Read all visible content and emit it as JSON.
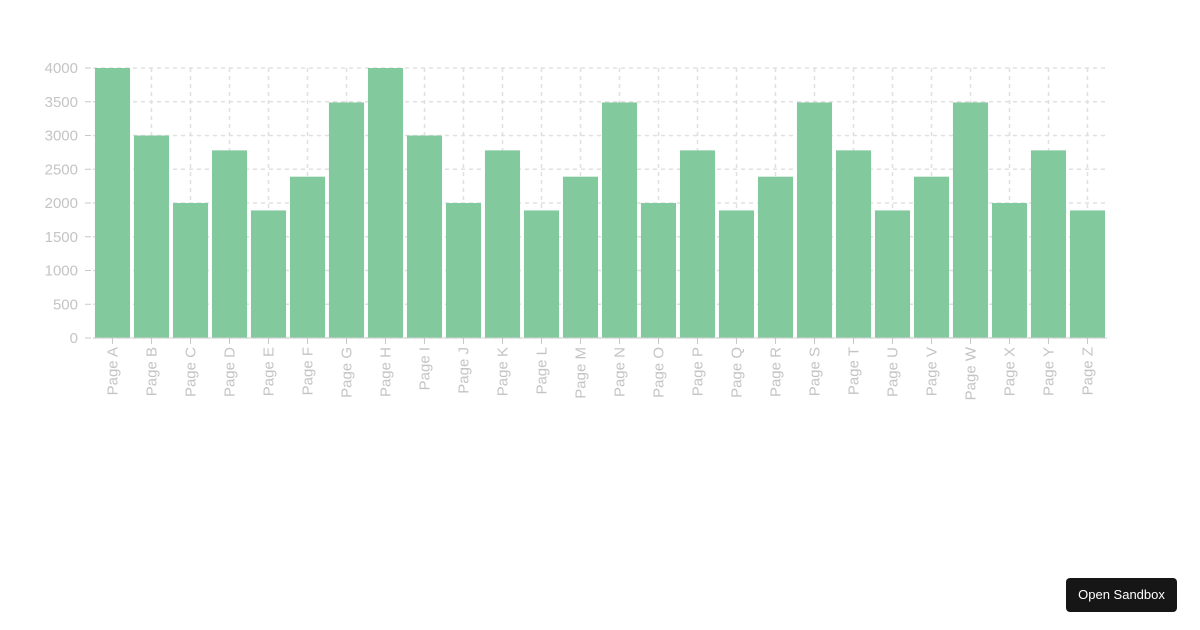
{
  "chart_data": {
    "type": "bar",
    "categories": [
      "Page A",
      "Page B",
      "Page C",
      "Page D",
      "Page E",
      "Page F",
      "Page G",
      "Page H",
      "Page I",
      "Page J",
      "Page K",
      "Page L",
      "Page M",
      "Page N",
      "Page O",
      "Page P",
      "Page Q",
      "Page R",
      "Page S",
      "Page T",
      "Page U",
      "Page V",
      "Page W",
      "Page X",
      "Page Y",
      "Page Z"
    ],
    "series": [
      {
        "values": [
          4000,
          3000,
          2000,
          2780,
          1890,
          2390,
          3490,
          4000,
          3000,
          2000,
          2780,
          1890,
          2390,
          3490,
          2000,
          2780,
          1890,
          2390,
          3490,
          2780,
          1890,
          2390,
          3490,
          2000,
          2780,
          1890
        ]
      }
    ],
    "ylim": [
      0,
      4000
    ],
    "yticks": [
      0,
      500,
      1000,
      1500,
      2000,
      2500,
      3000,
      3500,
      4000
    ],
    "grid": true,
    "bar_color": "#82ca9d",
    "title": "",
    "xlabel": "",
    "ylabel": ""
  },
  "sandbox_button": {
    "label": "Open Sandbox"
  }
}
